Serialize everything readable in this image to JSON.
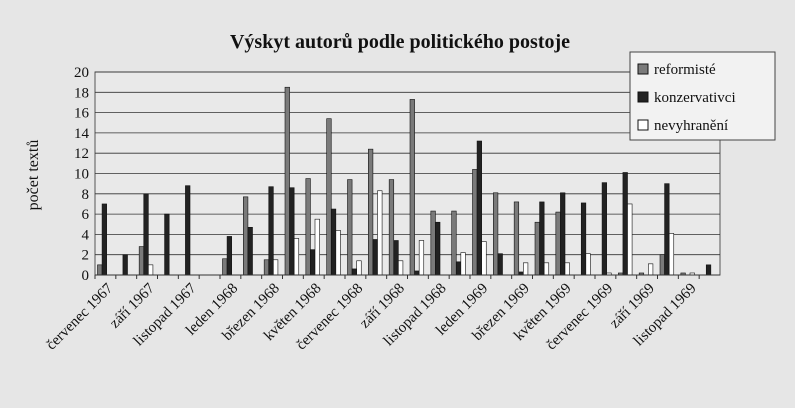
{
  "chart_data": {
    "type": "bar",
    "title": "Výskyt autorů podle politického postoje",
    "y_label": "počet textů",
    "categories": [
      "červenec 1967",
      null,
      "září 1967",
      null,
      "listopad 1967",
      null,
      "leden 1968",
      null,
      "březen 1968",
      null,
      "květen 1968",
      null,
      "červenec 1968",
      null,
      "září 1968",
      null,
      "listopad 1968",
      null,
      "leden 1969",
      null,
      "březen 1969",
      null,
      "květen 1969",
      null,
      "červenec 1969",
      null,
      "září 1969",
      null,
      "listopad 1969",
      null
    ],
    "series": [
      {
        "name": "reformisté",
        "color": "#7a7a7a",
        "values": [
          1,
          0,
          2.8,
          0,
          0,
          0,
          1.6,
          7.7,
          1.5,
          18.5,
          9.5,
          15.4,
          9.4,
          12.4,
          9.4,
          17.3,
          6.3,
          6.3,
          10.4,
          8.1,
          7.2,
          5.2,
          6.2,
          0,
          0,
          0.2,
          0.2,
          2,
          0.2,
          0
        ]
      },
      {
        "name": "konzervativci",
        "color": "#222222",
        "values": [
          7,
          2,
          8,
          6,
          8.8,
          0,
          3.8,
          4.7,
          8.7,
          8.6,
          2.5,
          6.5,
          0.6,
          3.5,
          3.4,
          0.4,
          5.2,
          1.3,
          13.2,
          2.1,
          0.3,
          7.2,
          8.1,
          7.1,
          9.1,
          10.1,
          0,
          9,
          0,
          1
        ]
      },
      {
        "name": "nevyhranění",
        "color": "#ffffff",
        "values": [
          0,
          0,
          1,
          0,
          0,
          0,
          0,
          0,
          1.5,
          3.6,
          5.5,
          4.4,
          1.4,
          8.3,
          1.4,
          3.4,
          0,
          2.2,
          3.3,
          0,
          1.2,
          1.2,
          1.2,
          2.1,
          0.2,
          7,
          1.1,
          4.1,
          0.2,
          0
        ]
      }
    ],
    "ylim": [
      0,
      20
    ],
    "yticks": [
      0,
      2,
      4,
      6,
      8,
      10,
      12,
      14,
      16,
      18,
      20
    ],
    "grid": true,
    "legend": "top-right"
  }
}
